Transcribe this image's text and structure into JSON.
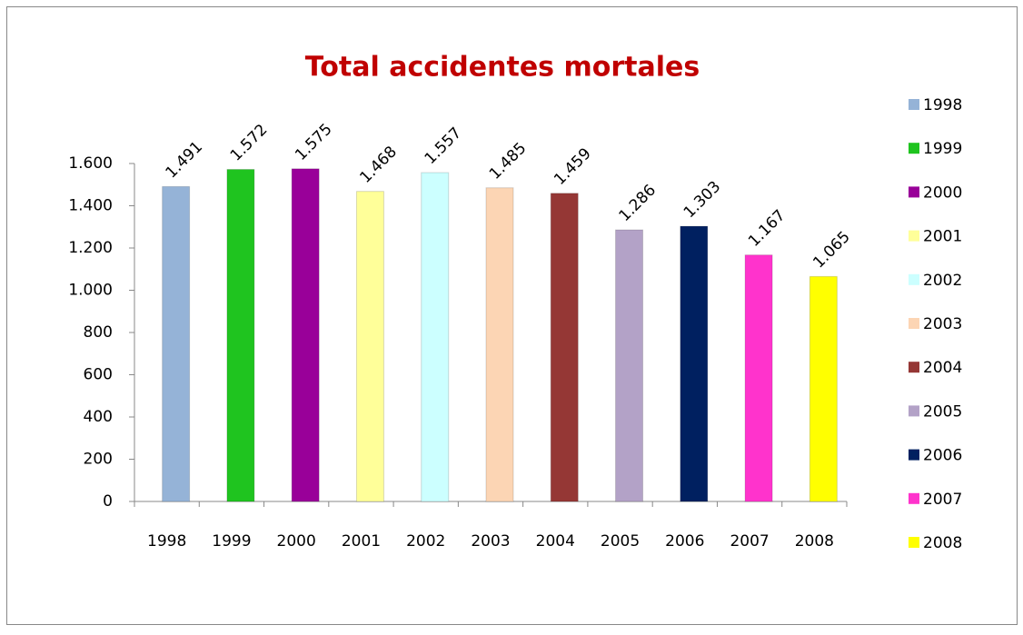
{
  "chart_data": {
    "type": "bar",
    "title": "Total accidentes mortales",
    "categories": [
      "1998",
      "1999",
      "2000",
      "2001",
      "2002",
      "2003",
      "2004",
      "2005",
      "2006",
      "2007",
      "2008"
    ],
    "values": [
      1491,
      1572,
      1575,
      1468,
      1557,
      1485,
      1459,
      1286,
      1303,
      1167,
      1065
    ],
    "value_labels": [
      "1.491",
      "1.572",
      "1.575",
      "1.468",
      "1.557",
      "1.485",
      "1.459",
      "1.286",
      "1.303",
      "1.167",
      "1.065"
    ],
    "colors": [
      "#95b3d7",
      "#1fc41f",
      "#990099",
      "#ffff99",
      "#ccffff",
      "#fcd5b4",
      "#953735",
      "#b3a2c7",
      "#002060",
      "#ff33cc",
      "#ffff00"
    ],
    "ylim": [
      0,
      1600
    ],
    "yticks": [
      0,
      200,
      400,
      600,
      800,
      {
        "value": 1000,
        "label": "1.000"
      },
      {
        "value": 1200,
        "label": "1.200"
      },
      {
        "value": 1400,
        "label": "1.400"
      },
      {
        "value": 1600,
        "label": "1.600"
      }
    ],
    "legend": "right"
  }
}
